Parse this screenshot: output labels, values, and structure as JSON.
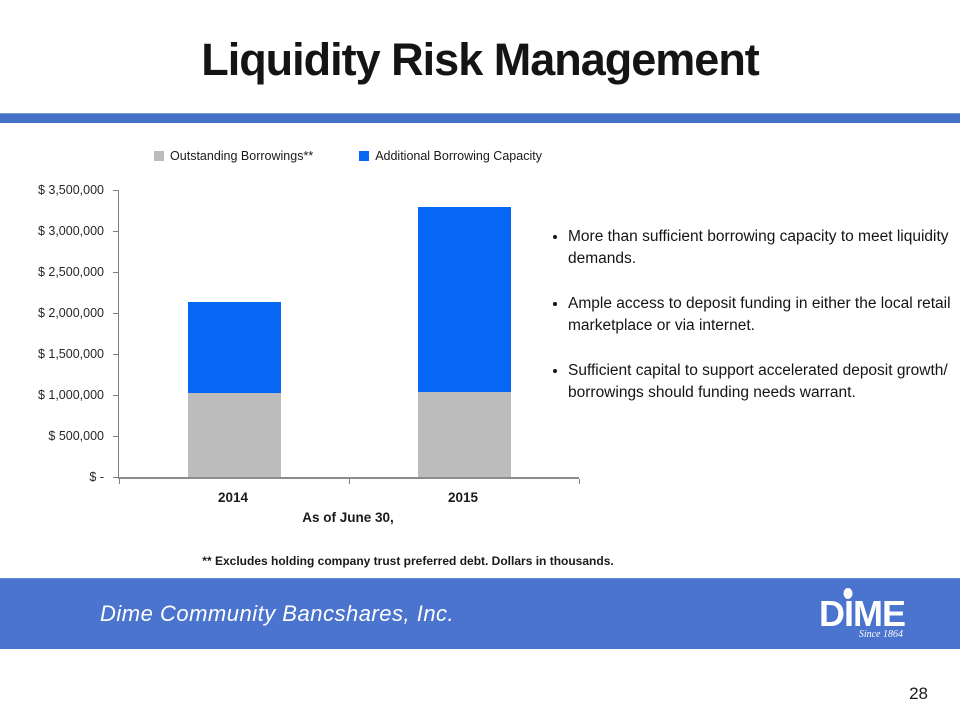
{
  "slide": {
    "title": "Liquidity Risk Management",
    "page_number": "28"
  },
  "chart_data": {
    "type": "bar",
    "stacked": true,
    "title": "",
    "xlabel": "As of June 30,",
    "ylabel": "",
    "categories": [
      "2014",
      "2015"
    ],
    "series": [
      {
        "name": "Outstanding Borrowings**",
        "color": "#bcbcbc",
        "values": [
          1020000,
          1040000
        ]
      },
      {
        "name": "Additional Borrowing Capacity",
        "color": "#0667f5",
        "values": [
          1120000,
          2250000
        ]
      }
    ],
    "ylim": [
      0,
      3500000
    ],
    "y_tick_step": 500000,
    "y_tick_labels": [
      "$ 3,500,000",
      "$ 3,000,000",
      "$ 2,500,000",
      "$ 2,000,000",
      "$ 1,500,000",
      "$ 1,000,000",
      "$ 500,000",
      "$ -"
    ],
    "legend_position": "top",
    "grid": false
  },
  "bullets": [
    "More than sufficient borrowing capacity to meet liquidity demands.",
    "Ample access to deposit funding in either the local retail marketplace or via internet.",
    "Sufficient capital to support accelerated deposit growth/ borrowings should funding needs warrant."
  ],
  "footnote": "** Excludes holding company trust preferred debt.  Dollars in thousands.",
  "footer": {
    "company": "Dime Community Bancshares, Inc.",
    "logo": {
      "letter_d": "D",
      "letter_i": "I",
      "letters_me": "ME",
      "tagline": "Since 1864"
    }
  },
  "colors": {
    "divider_blue": "#4472c4",
    "footer_blue": "#4a74cd",
    "bar_gray": "#bcbcbc",
    "bar_blue": "#0667f5"
  }
}
